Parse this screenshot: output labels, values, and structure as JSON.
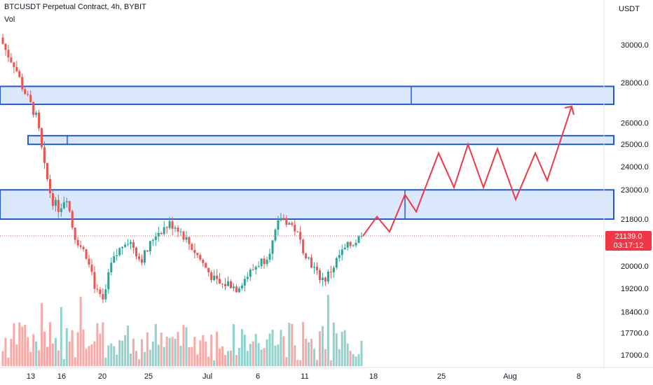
{
  "header": {
    "symbol_line": "BTCUSDT Perpetual Contract, 4h, BYBIT",
    "volume_label": "Vol"
  },
  "price_axis": {
    "currency": "USDT",
    "ticks": [
      "30000.0",
      "28000.0",
      "26000.0",
      "25000.0",
      "24000.0",
      "23000.0",
      "21800.0",
      "20000.0",
      "19200.0",
      "18400.0",
      "17700.0",
      "17000.0"
    ],
    "last_price": "21139.0",
    "countdown": "03:17:12"
  },
  "time_axis": {
    "ticks": [
      "13",
      "16",
      "20",
      "25",
      "Jul",
      "6",
      "11",
      "18",
      "25",
      "Aug",
      "8"
    ]
  },
  "colors": {
    "up": "#26a69a",
    "down": "#ef5350",
    "zone_fill": "#dbe7fb",
    "zone_border": "#1e5bd8",
    "projection": "#f23645",
    "price_label_bg": "#f23645"
  },
  "chart_data": {
    "type": "candlestick",
    "title": "BTCUSDT Perpetual Contract, 4h, BYBIT",
    "y_unit": "USDT",
    "y_scale": "log",
    "ylim": [
      16800,
      31500
    ],
    "x_ticks": [
      "13",
      "16",
      "20",
      "25",
      "Jul",
      "6",
      "11",
      "18",
      "25",
      "Aug",
      "8"
    ],
    "last_close": 21139.0,
    "price_path": [
      [
        30400,
        0
      ],
      [
        29500,
        4
      ],
      [
        28900,
        8
      ],
      [
        27800,
        12
      ],
      [
        27000,
        16
      ],
      [
        26200,
        20
      ],
      [
        24000,
        24
      ],
      [
        22600,
        28
      ],
      [
        22200,
        32
      ],
      [
        22800,
        36
      ],
      [
        21200,
        40
      ],
      [
        20700,
        44
      ],
      [
        20300,
        48
      ],
      [
        19100,
        52
      ],
      [
        18700,
        56
      ],
      [
        20000,
        60
      ],
      [
        20500,
        64
      ],
      [
        21000,
        68
      ],
      [
        20800,
        72
      ],
      [
        20200,
        76
      ],
      [
        20600,
        80
      ],
      [
        21200,
        84
      ],
      [
        21400,
        88
      ],
      [
        21600,
        92
      ],
      [
        21500,
        96
      ],
      [
        21100,
        100
      ],
      [
        20700,
        104
      ],
      [
        20300,
        108
      ],
      [
        19900,
        112
      ],
      [
        19500,
        116
      ],
      [
        19300,
        120
      ],
      [
        19400,
        124
      ],
      [
        19200,
        128
      ],
      [
        19500,
        132
      ],
      [
        19800,
        136
      ],
      [
        20100,
        140
      ],
      [
        20300,
        144
      ],
      [
        20900,
        148
      ],
      [
        21900,
        152
      ],
      [
        21700,
        156
      ],
      [
        21400,
        160
      ],
      [
        20700,
        164
      ],
      [
        20200,
        168
      ],
      [
        19700,
        172
      ],
      [
        19500,
        176
      ],
      [
        19900,
        180
      ],
      [
        20400,
        184
      ],
      [
        20700,
        188
      ],
      [
        20900,
        192
      ],
      [
        21139,
        196
      ]
    ],
    "zones": [
      {
        "from": 26900,
        "to": 27800
      },
      {
        "from": 25000,
        "to": 25400
      },
      {
        "from": 21800,
        "to": 23000
      }
    ],
    "projection": [
      21139,
      21900,
      21300,
      22800,
      22100,
      24600,
      23100,
      25000,
      23100,
      24800,
      22600,
      24600,
      23400,
      26800
    ]
  }
}
